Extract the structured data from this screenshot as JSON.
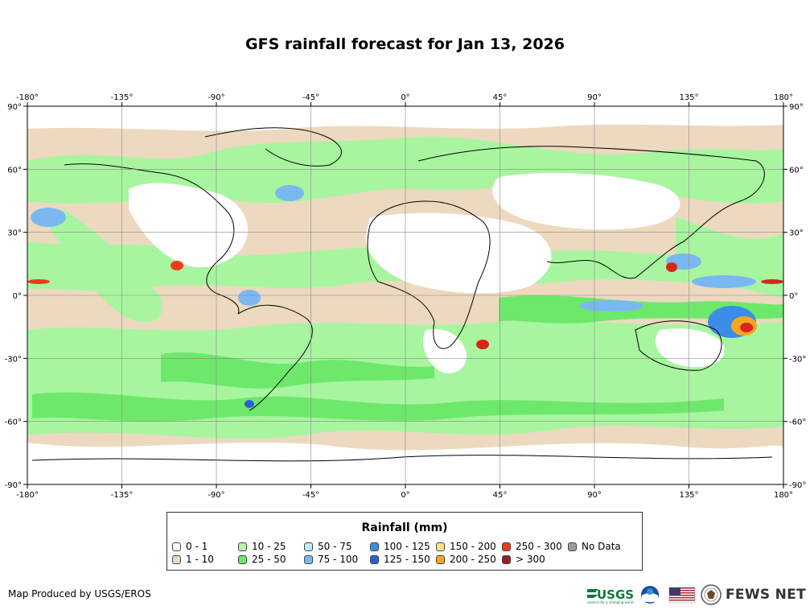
{
  "map": {
    "title": "GFS rainfall forecast for Jan 13, 2026",
    "lon_ticks": [
      "-180°",
      "-135°",
      "-90°",
      "-45°",
      "0°",
      "45°",
      "90°",
      "135°",
      "180°"
    ],
    "lat_ticks": [
      "90°",
      "60°",
      "30°",
      "0°",
      "-30°",
      "-60°",
      "-90°"
    ],
    "colors": {
      "ocean_base": "#ecd9bf",
      "land_dry": "#ffffff",
      "low_rain": "#a8f5a0",
      "mid_rain": "#6ee86a",
      "heavy_rain": "#7ab8f2",
      "very_heavy": "#2f6fe0",
      "extreme": "#d8261a"
    }
  },
  "legend": {
    "title": "Rainfall (mm)",
    "items": [
      {
        "label": "0 - 1",
        "color": "#ffffff"
      },
      {
        "label": "1 - 10",
        "color": "#ecd9bf"
      },
      {
        "label": "10 - 25",
        "color": "#b6f4ad"
      },
      {
        "label": "25 - 50",
        "color": "#6ee86a"
      },
      {
        "label": "50 - 75",
        "color": "#b9ecf9"
      },
      {
        "label": "75 - 100",
        "color": "#7ab8f2"
      },
      {
        "label": "100 - 125",
        "color": "#3c8de8"
      },
      {
        "label": "125 - 150",
        "color": "#2a5fd8"
      },
      {
        "label": "150 - 200",
        "color": "#fde57a"
      },
      {
        "label": "200 - 250",
        "color": "#f8a51e"
      },
      {
        "label": "250 - 300",
        "color": "#ee3b19"
      },
      {
        "label": "> 300",
        "color": "#9e1c1c"
      },
      {
        "label": "No Data",
        "color": "#9a9a9a"
      }
    ]
  },
  "footer": {
    "credit": "Map Produced by USGS/EROS",
    "usgs_label": "USGS",
    "usgs_tagline": "science for a changing world",
    "fews_label": "FEWS NET",
    "logos": [
      "usgs-logo",
      "noaa-logo",
      "us-flag",
      "state-department-seal"
    ]
  }
}
